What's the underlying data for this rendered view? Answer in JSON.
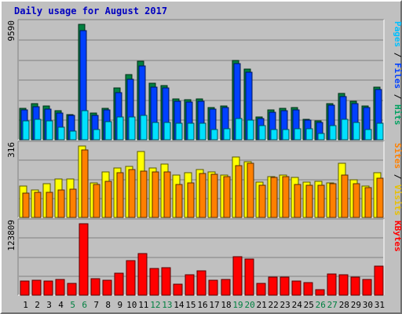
{
  "chart_data": {
    "title": "Daily usage for August 2017",
    "type": "bar",
    "days": [
      "1",
      "2",
      "3",
      "4",
      "5",
      "6",
      "7",
      "8",
      "9",
      "10",
      "11",
      "12",
      "13",
      "14",
      "15",
      "16",
      "17",
      "18",
      "19",
      "20",
      "21",
      "22",
      "23",
      "24",
      "25",
      "26",
      "27",
      "28",
      "29",
      "30",
      "31"
    ],
    "weekend_days": [
      "5",
      "6",
      "12",
      "13",
      "19",
      "20",
      "26",
      "27"
    ],
    "panels": [
      {
        "id": "hits",
        "max_label": "9590",
        "max": 9590,
        "series": [
          {
            "name": "Hits",
            "color": "#008040",
            "values": [
              2600,
              3000,
              2800,
              2400,
              2100,
              9590,
              2200,
              2600,
              4300,
              5400,
              6500,
              4700,
              4500,
              3400,
              3300,
              3400,
              2700,
              2800,
              6600,
              5850,
              1900,
              2500,
              2600,
              2700,
              1700,
              1550,
              3000,
              3850,
              3200,
              2800,
              4400
            ]
          },
          {
            "name": "Files",
            "color": "#0040ff",
            "values": [
              2500,
              2750,
              2550,
              2200,
              2000,
              9100,
              2000,
              2500,
              3900,
              5000,
              6100,
              4400,
              4300,
              3200,
              3150,
              3200,
              2550,
              2650,
              6300,
              5600,
              1750,
              2300,
              2400,
              2500,
              1600,
              1450,
              2850,
              3600,
              3000,
              2650,
              4150
            ]
          },
          {
            "name": "Pages",
            "color": "#00e0ff",
            "values": [
              1550,
              1700,
              1550,
              1050,
              750,
              2400,
              850,
              1500,
              1900,
              1900,
              2000,
              1450,
              1450,
              1350,
              1400,
              1400,
              850,
              900,
              1750,
              1650,
              1200,
              850,
              850,
              900,
              900,
              500,
              1200,
              1700,
              1450,
              850,
              1400
            ]
          }
        ],
        "axis_label": [
          {
            "text": "Pages",
            "color": "#00c0ff"
          },
          {
            "text": " / ",
            "color": "#000000"
          },
          {
            "text": "Files",
            "color": "#0040ff"
          },
          {
            "text": " / ",
            "color": "#000000"
          },
          {
            "text": "Hits",
            "color": "#00a060"
          }
        ]
      },
      {
        "id": "visits",
        "max_label": "316",
        "max": 316,
        "series": [
          {
            "name": "Visits",
            "color": "#ffff00",
            "values": [
              138,
              121,
              151,
              171,
              169,
              316,
              152,
              202,
              219,
              224,
              293,
              220,
              236,
              189,
              198,
              212,
              201,
              186,
              266,
              246,
              157,
              182,
              189,
              178,
              155,
              160,
              154,
              241,
              167,
              139,
              199
            ]
          },
          {
            "name": "Sites",
            "color": "#ff8000",
            "values": [
              108,
              111,
              111,
              121,
              124,
              298,
              146,
              158,
              197,
              212,
              205,
              200,
              201,
              146,
              152,
              193,
              191,
              181,
              230,
              238,
              141,
              177,
              180,
              146,
              142,
              143,
              151,
              189,
              149,
              131,
              174
            ]
          }
        ],
        "axis_label": [
          {
            "text": "Sites",
            "color": "#ff8000"
          },
          {
            "text": " / ",
            "color": "#000000"
          },
          {
            "text": "Visits",
            "color": "#e8c000"
          }
        ]
      },
      {
        "id": "kbytes",
        "max_label": "123809",
        "max": 123809,
        "series": [
          {
            "name": "KBytes",
            "color": "#ff0000",
            "values": [
              24000,
              26000,
              24500,
              27500,
              21000,
              123809,
              28000,
              26000,
              38000,
              60000,
              72000,
              46000,
              48000,
              19000,
              36000,
              42000,
              26500,
              27000,
              67000,
              63000,
              21000,
              31000,
              31500,
              24500,
              22000,
              10000,
              37000,
              35500,
              31500,
              27000,
              50500
            ]
          }
        ],
        "axis_label": [
          {
            "text": "KBytes",
            "color": "#ff0000"
          }
        ]
      }
    ]
  }
}
